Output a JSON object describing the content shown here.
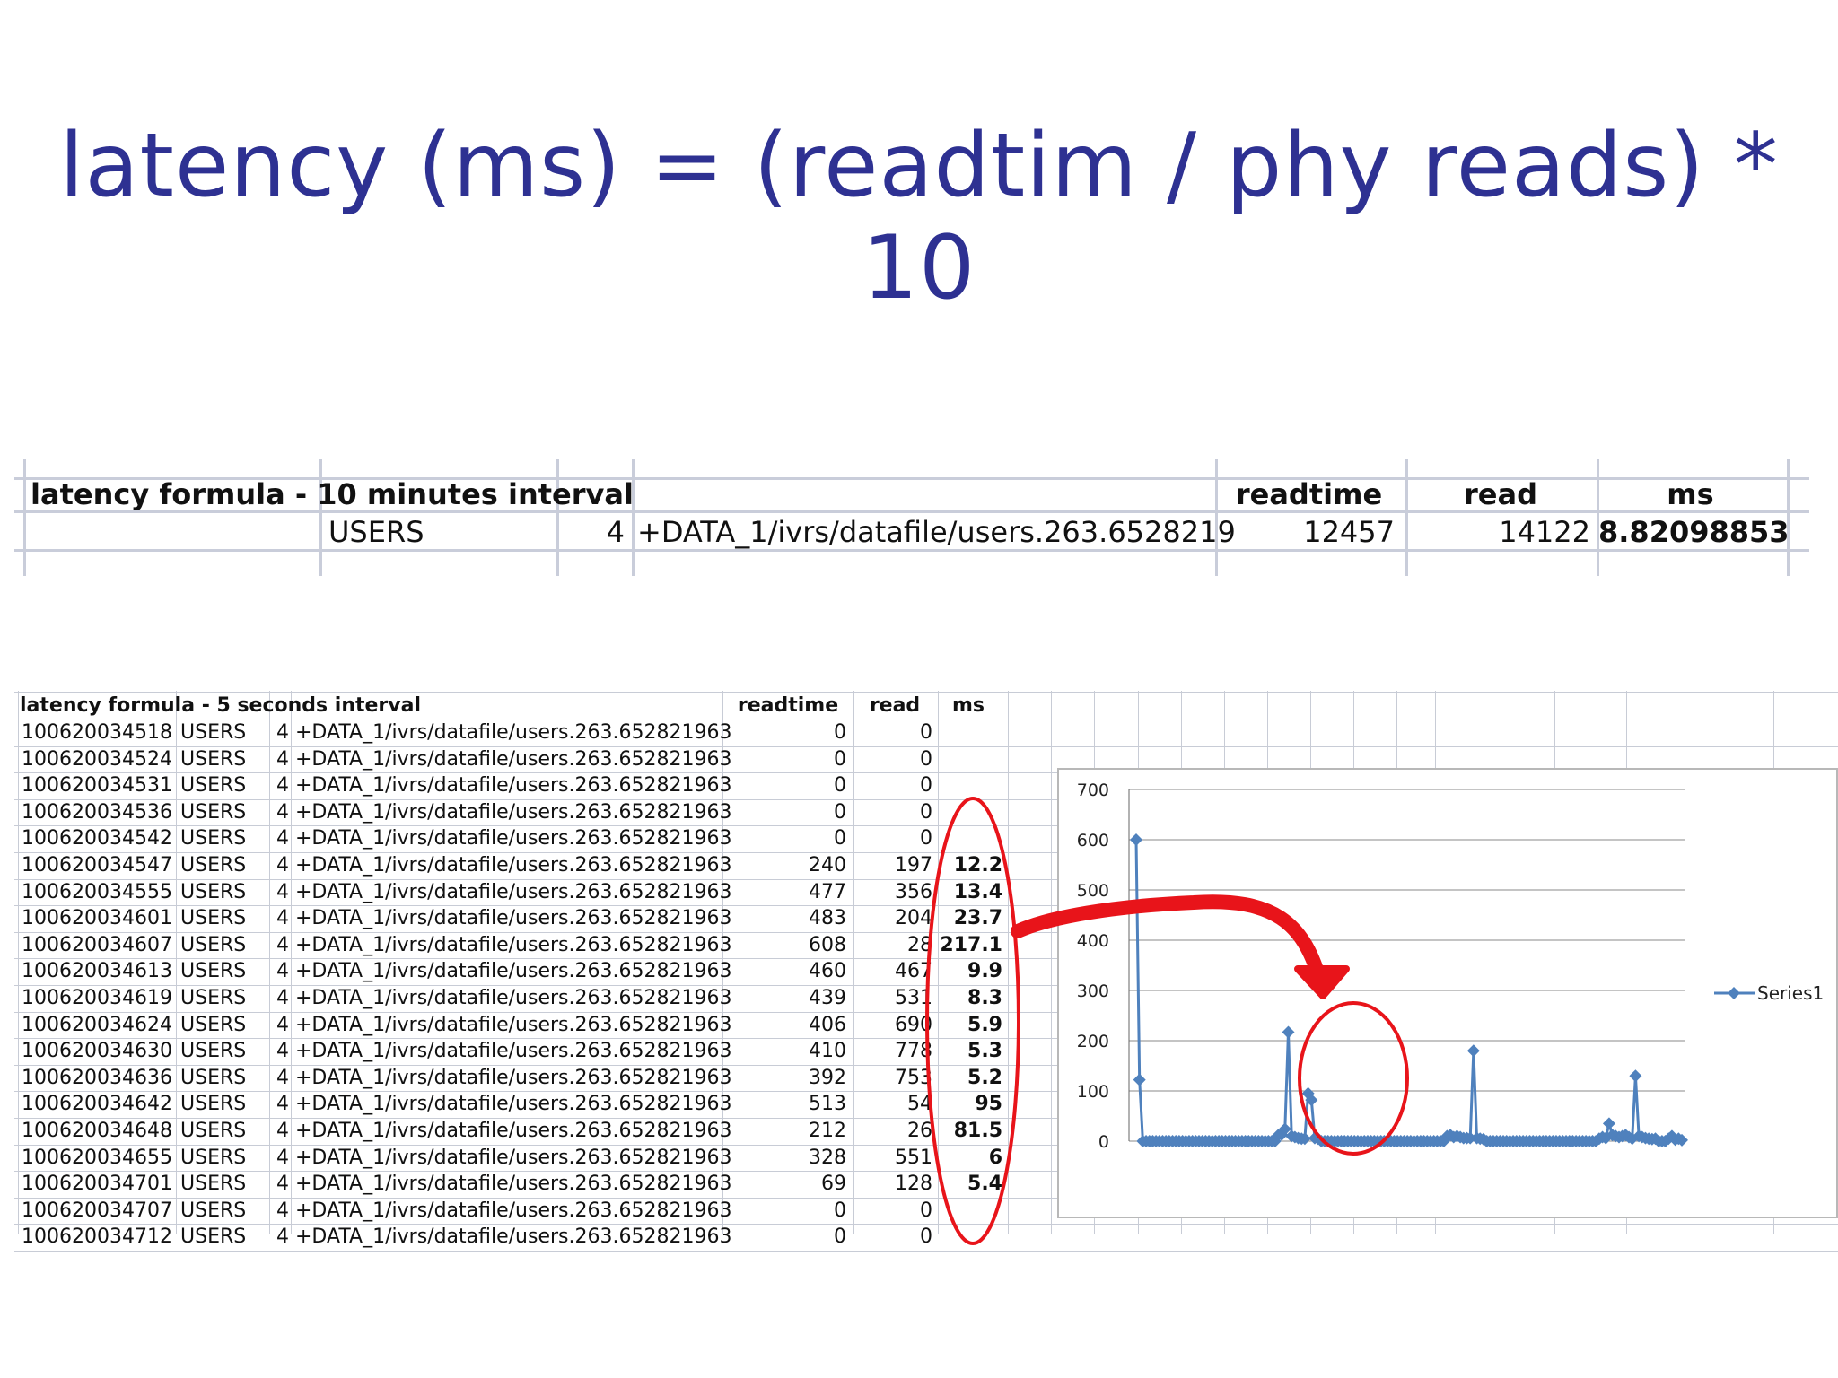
{
  "title": "latency (ms) = (readtim / phy reads) * 10",
  "summary": {
    "heading": "latency formula - 10 minutes interval",
    "col_readtime": "readtime",
    "col_read": "read",
    "col_ms": "ms",
    "row": {
      "tablespace": "USERS",
      "file_no": "4",
      "file_name": "+DATA_1/ivrs/datafile/users.263.6528219",
      "readtime": "12457",
      "read": "14122",
      "ms": "8.82098853"
    }
  },
  "detail": {
    "heading": "latency formula - 5 seconds interval",
    "col_readtime": "readtime",
    "col_read": "read",
    "col_ms": "ms",
    "file_name": "+DATA_1/ivrs/datafile/users.263.652821963",
    "rows": [
      {
        "ts": "100620034518",
        "tbs": "USERS",
        "no": "4",
        "readtime": "0",
        "read": "0",
        "ms": ""
      },
      {
        "ts": "100620034524",
        "tbs": "USERS",
        "no": "4",
        "readtime": "0",
        "read": "0",
        "ms": ""
      },
      {
        "ts": "100620034531",
        "tbs": "USERS",
        "no": "4",
        "readtime": "0",
        "read": "0",
        "ms": ""
      },
      {
        "ts": "100620034536",
        "tbs": "USERS",
        "no": "4",
        "readtime": "0",
        "read": "0",
        "ms": ""
      },
      {
        "ts": "100620034542",
        "tbs": "USERS",
        "no": "4",
        "readtime": "0",
        "read": "0",
        "ms": ""
      },
      {
        "ts": "100620034547",
        "tbs": "USERS",
        "no": "4",
        "readtime": "240",
        "read": "197",
        "ms": "12.2"
      },
      {
        "ts": "100620034555",
        "tbs": "USERS",
        "no": "4",
        "readtime": "477",
        "read": "356",
        "ms": "13.4"
      },
      {
        "ts": "100620034601",
        "tbs": "USERS",
        "no": "4",
        "readtime": "483",
        "read": "204",
        "ms": "23.7"
      },
      {
        "ts": "100620034607",
        "tbs": "USERS",
        "no": "4",
        "readtime": "608",
        "read": "28",
        "ms": "217.1"
      },
      {
        "ts": "100620034613",
        "tbs": "USERS",
        "no": "4",
        "readtime": "460",
        "read": "467",
        "ms": "9.9"
      },
      {
        "ts": "100620034619",
        "tbs": "USERS",
        "no": "4",
        "readtime": "439",
        "read": "531",
        "ms": "8.3"
      },
      {
        "ts": "100620034624",
        "tbs": "USERS",
        "no": "4",
        "readtime": "406",
        "read": "690",
        "ms": "5.9"
      },
      {
        "ts": "100620034630",
        "tbs": "USERS",
        "no": "4",
        "readtime": "410",
        "read": "778",
        "ms": "5.3"
      },
      {
        "ts": "100620034636",
        "tbs": "USERS",
        "no": "4",
        "readtime": "392",
        "read": "753",
        "ms": "5.2"
      },
      {
        "ts": "100620034642",
        "tbs": "USERS",
        "no": "4",
        "readtime": "513",
        "read": "54",
        "ms": "95"
      },
      {
        "ts": "100620034648",
        "tbs": "USERS",
        "no": "4",
        "readtime": "212",
        "read": "26",
        "ms": "81.5"
      },
      {
        "ts": "100620034655",
        "tbs": "USERS",
        "no": "4",
        "readtime": "328",
        "read": "551",
        "ms": "6"
      },
      {
        "ts": "100620034701",
        "tbs": "USERS",
        "no": "4",
        "readtime": "69",
        "read": "128",
        "ms": "5.4"
      },
      {
        "ts": "100620034707",
        "tbs": "USERS",
        "no": "4",
        "readtime": "0",
        "read": "0",
        "ms": ""
      },
      {
        "ts": "100620034712",
        "tbs": "USERS",
        "no": "4",
        "readtime": "0",
        "read": "0",
        "ms": ""
      }
    ]
  },
  "colors": {
    "title": "#2e3192",
    "series": "#4f81bd",
    "annotation": "#e8141a",
    "grid": "#c8ccd6"
  },
  "chart_data": {
    "type": "line",
    "title": "",
    "xlabel": "",
    "ylabel": "",
    "ylim": [
      0,
      700
    ],
    "yticks": [
      0,
      100,
      200,
      300,
      400,
      500,
      600,
      700
    ],
    "legend_position": "right",
    "series": [
      {
        "name": "Series1",
        "values": [
          600,
          122,
          0,
          0,
          0,
          0,
          0,
          0,
          0,
          0,
          0,
          0,
          0,
          0,
          0,
          0,
          0,
          0,
          0,
          0,
          0,
          0,
          0,
          0,
          0,
          0,
          0,
          0,
          0,
          0,
          0,
          0,
          0,
          0,
          0,
          0,
          0,
          0,
          0,
          0,
          0,
          0,
          0,
          12,
          13,
          24,
          217,
          10,
          8,
          6,
          5,
          5,
          95,
          82,
          6,
          5,
          0,
          0,
          0,
          0,
          0,
          0,
          0,
          0,
          0,
          0,
          0,
          0,
          0,
          0,
          0,
          0,
          0,
          0,
          0,
          0,
          0,
          0,
          0,
          0,
          0,
          0,
          0,
          0,
          0,
          0,
          0,
          0,
          0,
          0,
          0,
          0,
          0,
          0,
          10,
          12,
          8,
          10,
          8,
          6,
          6,
          6,
          180,
          6,
          5,
          4,
          0,
          0,
          0,
          0,
          0,
          0,
          0,
          0,
          0,
          0,
          0,
          0,
          0,
          0,
          0,
          0,
          0,
          0,
          0,
          0,
          0,
          0,
          0,
          0,
          0,
          0,
          0,
          0,
          0,
          0,
          0,
          0,
          0,
          0,
          5,
          8,
          6,
          35,
          12,
          10,
          8,
          10,
          12,
          8,
          5,
          130,
          10,
          8,
          6,
          5,
          4,
          5,
          0,
          0,
          0,
          5,
          10,
          3,
          5,
          2
        ]
      }
    ]
  }
}
